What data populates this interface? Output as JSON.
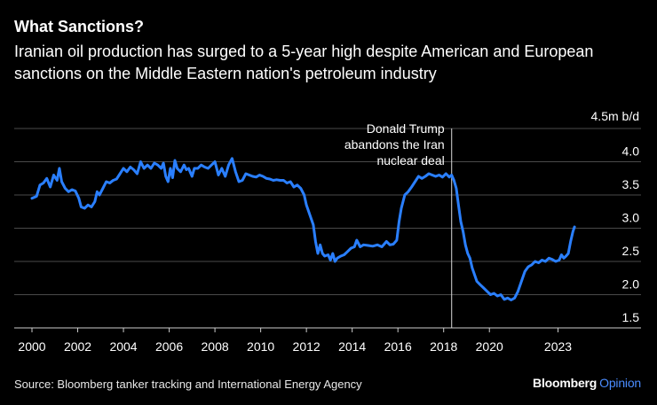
{
  "header": {
    "title": "What Sanctions?",
    "subtitle": "Iranian oil production has surged to a 5-year high despite American and European sanctions on the Middle Eastern nation's petroleum industry"
  },
  "footer": {
    "source": "Source: Bloomberg tanker tracking and International Energy Agency",
    "brand_main": "Bloomberg",
    "brand_sub": "Opinion"
  },
  "colors": {
    "background": "#000000",
    "line": "#2a7fff",
    "grid": "#555555",
    "text": "#ffffff"
  },
  "chart_data": {
    "type": "line",
    "title": "What Sanctions?",
    "ylabel": "4.5m b/d",
    "unit_label": "4.5m b/d",
    "xlim": [
      2000,
      2024.3
    ],
    "ylim": [
      1.5,
      4.5
    ],
    "x_ticks": [
      2000,
      2002,
      2004,
      2006,
      2008,
      2010,
      2012,
      2014,
      2016,
      2018,
      2020,
      2023
    ],
    "x_tick_labels": [
      "2000",
      "2002",
      "2004",
      "2006",
      "2008",
      "2010",
      "2012",
      "2014",
      "2016",
      "2018",
      "2020",
      "2023"
    ],
    "y_ticks": [
      1.5,
      2.0,
      2.5,
      3.0,
      3.5,
      4.0,
      4.5
    ],
    "y_tick_labels": [
      "1.5",
      "2.0",
      "2.5",
      "3.0",
      "3.5",
      "4.0",
      "4.5m b/d"
    ],
    "annotation": {
      "x": 2018.35,
      "lines": [
        "Donald Trump",
        "abandons the Iran",
        "nuclear deal"
      ]
    },
    "series": [
      {
        "name": "Iranian oil production",
        "points": [
          [
            2000.0,
            3.45
          ],
          [
            2000.2,
            3.48
          ],
          [
            2000.35,
            3.65
          ],
          [
            2000.5,
            3.68
          ],
          [
            2000.65,
            3.75
          ],
          [
            2000.8,
            3.62
          ],
          [
            2000.95,
            3.8
          ],
          [
            2001.1,
            3.72
          ],
          [
            2001.2,
            3.9
          ],
          [
            2001.3,
            3.7
          ],
          [
            2001.45,
            3.6
          ],
          [
            2001.6,
            3.55
          ],
          [
            2001.75,
            3.58
          ],
          [
            2001.9,
            3.56
          ],
          [
            2002.05,
            3.45
          ],
          [
            2002.15,
            3.32
          ],
          [
            2002.3,
            3.3
          ],
          [
            2002.45,
            3.35
          ],
          [
            2002.6,
            3.32
          ],
          [
            2002.75,
            3.4
          ],
          [
            2002.85,
            3.55
          ],
          [
            2002.95,
            3.5
          ],
          [
            2003.1,
            3.6
          ],
          [
            2003.25,
            3.7
          ],
          [
            2003.4,
            3.68
          ],
          [
            2003.55,
            3.72
          ],
          [
            2003.7,
            3.74
          ],
          [
            2003.85,
            3.82
          ],
          [
            2004.0,
            3.9
          ],
          [
            2004.15,
            3.85
          ],
          [
            2004.3,
            3.92
          ],
          [
            2004.45,
            3.88
          ],
          [
            2004.6,
            3.82
          ],
          [
            2004.75,
            4.0
          ],
          [
            2004.9,
            3.9
          ],
          [
            2005.05,
            3.95
          ],
          [
            2005.2,
            3.9
          ],
          [
            2005.35,
            3.98
          ],
          [
            2005.5,
            3.95
          ],
          [
            2005.65,
            3.9
          ],
          [
            2005.75,
            3.98
          ],
          [
            2005.85,
            3.78
          ],
          [
            2005.95,
            3.7
          ],
          [
            2006.05,
            3.9
          ],
          [
            2006.15,
            3.76
          ],
          [
            2006.25,
            4.02
          ],
          [
            2006.35,
            3.9
          ],
          [
            2006.5,
            3.85
          ],
          [
            2006.65,
            3.95
          ],
          [
            2006.75,
            3.88
          ],
          [
            2006.85,
            3.9
          ],
          [
            2007.0,
            3.78
          ],
          [
            2007.1,
            3.9
          ],
          [
            2007.25,
            3.9
          ],
          [
            2007.4,
            3.95
          ],
          [
            2007.55,
            3.92
          ],
          [
            2007.7,
            3.9
          ],
          [
            2007.85,
            3.95
          ],
          [
            2008.0,
            4.0
          ],
          [
            2008.15,
            3.8
          ],
          [
            2008.3,
            3.9
          ],
          [
            2008.45,
            3.78
          ],
          [
            2008.6,
            3.95
          ],
          [
            2008.75,
            4.05
          ],
          [
            2008.9,
            3.85
          ],
          [
            2009.05,
            3.7
          ],
          [
            2009.2,
            3.72
          ],
          [
            2009.35,
            3.82
          ],
          [
            2009.5,
            3.8
          ],
          [
            2009.65,
            3.78
          ],
          [
            2009.8,
            3.77
          ],
          [
            2009.95,
            3.8
          ],
          [
            2010.1,
            3.78
          ],
          [
            2010.25,
            3.75
          ],
          [
            2010.4,
            3.74
          ],
          [
            2010.55,
            3.72
          ],
          [
            2010.7,
            3.73
          ],
          [
            2010.85,
            3.72
          ],
          [
            2011.0,
            3.72
          ],
          [
            2011.15,
            3.68
          ],
          [
            2011.3,
            3.7
          ],
          [
            2011.45,
            3.62
          ],
          [
            2011.6,
            3.65
          ],
          [
            2011.75,
            3.6
          ],
          [
            2011.9,
            3.5
          ],
          [
            2012.0,
            3.35
          ],
          [
            2012.15,
            3.2
          ],
          [
            2012.3,
            3.05
          ],
          [
            2012.4,
            2.8
          ],
          [
            2012.5,
            2.62
          ],
          [
            2012.6,
            2.75
          ],
          [
            2012.7,
            2.62
          ],
          [
            2012.8,
            2.58
          ],
          [
            2012.95,
            2.6
          ],
          [
            2013.05,
            2.52
          ],
          [
            2013.15,
            2.62
          ],
          [
            2013.25,
            2.5
          ],
          [
            2013.35,
            2.55
          ],
          [
            2013.5,
            2.58
          ],
          [
            2013.65,
            2.6
          ],
          [
            2013.8,
            2.65
          ],
          [
            2013.95,
            2.7
          ],
          [
            2014.1,
            2.72
          ],
          [
            2014.2,
            2.82
          ],
          [
            2014.35,
            2.72
          ],
          [
            2014.5,
            2.75
          ],
          [
            2014.7,
            2.74
          ],
          [
            2014.9,
            2.73
          ],
          [
            2015.1,
            2.75
          ],
          [
            2015.3,
            2.72
          ],
          [
            2015.5,
            2.8
          ],
          [
            2015.65,
            2.75
          ],
          [
            2015.8,
            2.76
          ],
          [
            2015.95,
            2.82
          ],
          [
            2016.05,
            3.1
          ],
          [
            2016.15,
            3.3
          ],
          [
            2016.3,
            3.5
          ],
          [
            2016.45,
            3.55
          ],
          [
            2016.6,
            3.62
          ],
          [
            2016.75,
            3.7
          ],
          [
            2016.9,
            3.78
          ],
          [
            2017.05,
            3.75
          ],
          [
            2017.2,
            3.78
          ],
          [
            2017.35,
            3.82
          ],
          [
            2017.5,
            3.8
          ],
          [
            2017.65,
            3.78
          ],
          [
            2017.8,
            3.8
          ],
          [
            2017.95,
            3.77
          ],
          [
            2018.1,
            3.82
          ],
          [
            2018.25,
            3.77
          ],
          [
            2018.35,
            3.8
          ],
          [
            2018.45,
            3.72
          ],
          [
            2018.55,
            3.6
          ],
          [
            2018.65,
            3.35
          ],
          [
            2018.75,
            3.1
          ],
          [
            2018.85,
            2.95
          ],
          [
            2018.95,
            2.75
          ],
          [
            2019.05,
            2.62
          ],
          [
            2019.15,
            2.55
          ],
          [
            2019.25,
            2.4
          ],
          [
            2019.35,
            2.3
          ],
          [
            2019.45,
            2.2
          ],
          [
            2019.6,
            2.15
          ],
          [
            2019.75,
            2.1
          ],
          [
            2019.9,
            2.05
          ],
          [
            2020.05,
            2.0
          ],
          [
            2020.2,
            2.02
          ],
          [
            2020.35,
            1.98
          ],
          [
            2020.5,
            2.0
          ],
          [
            2020.65,
            1.93
          ],
          [
            2020.8,
            1.95
          ],
          [
            2020.95,
            1.92
          ],
          [
            2021.1,
            1.95
          ],
          [
            2021.25,
            2.05
          ],
          [
            2021.4,
            2.2
          ],
          [
            2021.55,
            2.35
          ],
          [
            2021.7,
            2.42
          ],
          [
            2021.85,
            2.45
          ],
          [
            2022.0,
            2.5
          ],
          [
            2022.15,
            2.48
          ],
          [
            2022.3,
            2.52
          ],
          [
            2022.45,
            2.5
          ],
          [
            2022.6,
            2.55
          ],
          [
            2022.75,
            2.53
          ],
          [
            2022.9,
            2.5
          ],
          [
            2023.05,
            2.52
          ],
          [
            2023.15,
            2.6
          ],
          [
            2023.25,
            2.55
          ],
          [
            2023.35,
            2.58
          ],
          [
            2023.45,
            2.62
          ],
          [
            2023.55,
            2.8
          ],
          [
            2023.65,
            2.95
          ],
          [
            2023.72,
            3.02
          ]
        ]
      }
    ]
  }
}
